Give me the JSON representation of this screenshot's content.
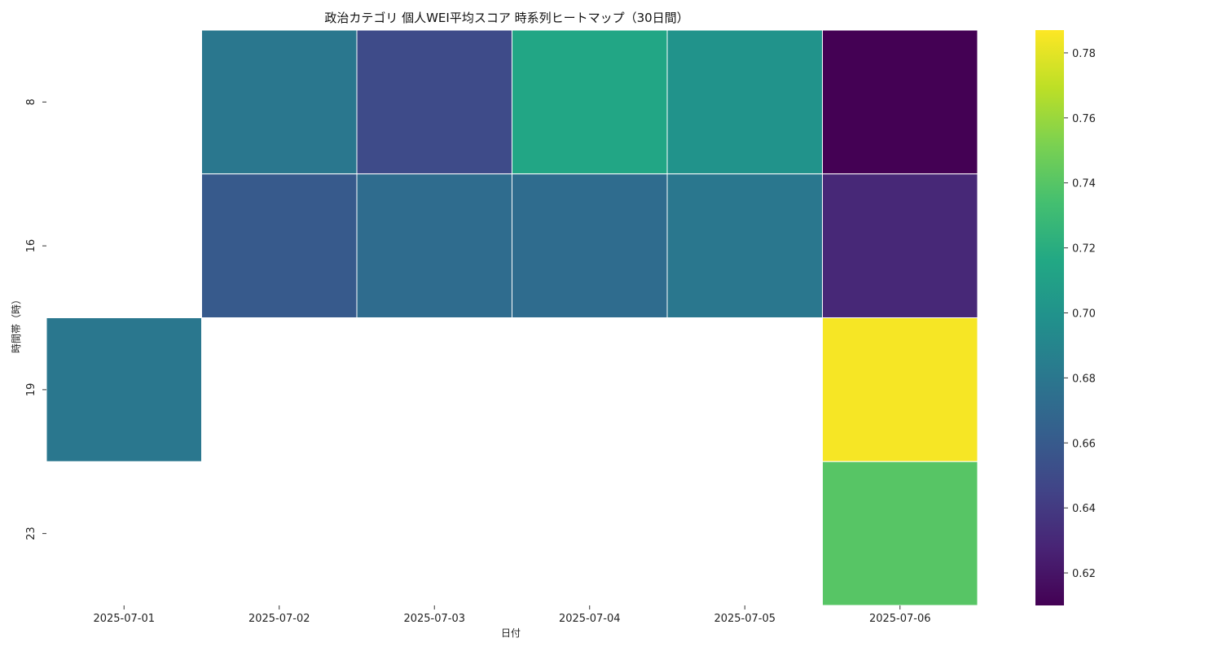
{
  "chart_data": {
    "type": "heatmap",
    "title": "政治カテゴリ 個人WEI平均スコア 時系列ヒートマップ（30日間）",
    "xlabel": "日付",
    "ylabel": "時間帯（時）",
    "x_categories": [
      "2025-07-01",
      "2025-07-02",
      "2025-07-03",
      "2025-07-04",
      "2025-07-05",
      "2025-07-06"
    ],
    "y_categories": [
      "8",
      "16",
      "19",
      "23"
    ],
    "values": [
      [
        null,
        0.68,
        0.65,
        0.715,
        0.7,
        0.61
      ],
      [
        null,
        0.66,
        0.672,
        0.672,
        0.68,
        0.63
      ],
      [
        0.68,
        null,
        null,
        null,
        null,
        0.785
      ],
      [
        null,
        null,
        null,
        null,
        null,
        0.74
      ]
    ],
    "colorscale": "viridis",
    "colorbar": {
      "min": 0.61,
      "max": 0.787,
      "ticks": [
        0.62,
        0.64,
        0.66,
        0.68,
        0.7,
        0.72,
        0.74,
        0.76,
        0.78
      ],
      "tick_labels": [
        "0.62",
        "0.64",
        "0.66",
        "0.68",
        "0.70",
        "0.72",
        "0.74",
        "0.76",
        "0.78"
      ]
    },
    "grid": false,
    "legend": "colorbar-right"
  }
}
